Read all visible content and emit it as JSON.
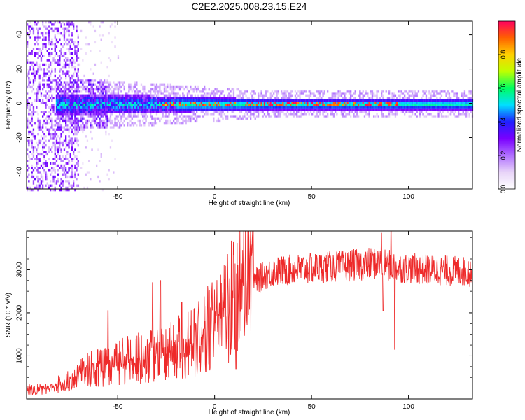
{
  "figure_title": "C2E2.2025.008.23.15.E24",
  "chart_data": [
    {
      "type": "heatmap",
      "title": "",
      "xlabel": "Height of straight line (km)",
      "ylabel": "Frequency (Hz)",
      "xlim": [
        -97,
        133
      ],
      "ylim": [
        -50,
        48
      ],
      "xticks": [
        -50,
        0,
        50,
        100
      ],
      "yticks": [
        -40,
        -20,
        0,
        20,
        40
      ],
      "grid": false,
      "description_of_field": {
        "band_center_hz": 0,
        "band_half_width_hz_at_low_height": 6,
        "band_half_width_hz_at_high_height": 3,
        "noise_region_x": [
          -97,
          -70
        ],
        "peak_ridge_x": [
          -30,
          95
        ]
      },
      "colorbar": {
        "label": "Normalized spectral amplitude",
        "range": [
          0.0,
          1.0
        ],
        "ticks": [
          0.0,
          0.2,
          0.4,
          0.6,
          0.8
        ],
        "tick_labels": [
          "0.0",
          "0.2",
          "0.4",
          "0.6",
          "0.8"
        ],
        "colormap": [
          "#ffffff",
          "#e8d4f8",
          "#b070ff",
          "#7a00ff",
          "#2020ff",
          "#00e0ff",
          "#00ff60",
          "#c0ff00",
          "#ffd000",
          "#ff6000",
          "#ff0060"
        ]
      }
    },
    {
      "type": "line",
      "title": "",
      "xlabel": "Height of straight line (km)",
      "ylabel": "SNR (10 * v/v)",
      "xlim": [
        -97,
        133
      ],
      "ylim": [
        0,
        3900
      ],
      "xticks": [
        -50,
        0,
        50,
        100
      ],
      "yticks": [
        1000,
        2000,
        3000
      ],
      "grid": false,
      "series_color": "#ee2a2a",
      "trend_points": {
        "x": [
          -97,
          -85,
          -75,
          -65,
          -50,
          -35,
          -20,
          -10,
          0,
          10,
          15,
          20,
          25,
          30,
          40,
          55,
          70,
          85,
          95,
          110,
          133
        ],
        "y": [
          180,
          220,
          350,
          550,
          700,
          800,
          950,
          1100,
          1500,
          1900,
          2300,
          2700,
          2850,
          2950,
          3000,
          3050,
          3100,
          3150,
          3050,
          3000,
          2950
        ]
      },
      "spikes": [
        {
          "x": -55,
          "y": 2050
        },
        {
          "x": -32,
          "y": 2700
        },
        {
          "x": -28,
          "y": 2750
        },
        {
          "x": -17,
          "y": 2250
        },
        {
          "x": 10,
          "y": 3350
        },
        {
          "x": 11,
          "y": 700
        },
        {
          "x": 86,
          "y": 3850
        },
        {
          "x": 87,
          "y": 2050
        },
        {
          "x": 91,
          "y": 3900
        },
        {
          "x": 93,
          "y": 1150
        }
      ]
    }
  ]
}
